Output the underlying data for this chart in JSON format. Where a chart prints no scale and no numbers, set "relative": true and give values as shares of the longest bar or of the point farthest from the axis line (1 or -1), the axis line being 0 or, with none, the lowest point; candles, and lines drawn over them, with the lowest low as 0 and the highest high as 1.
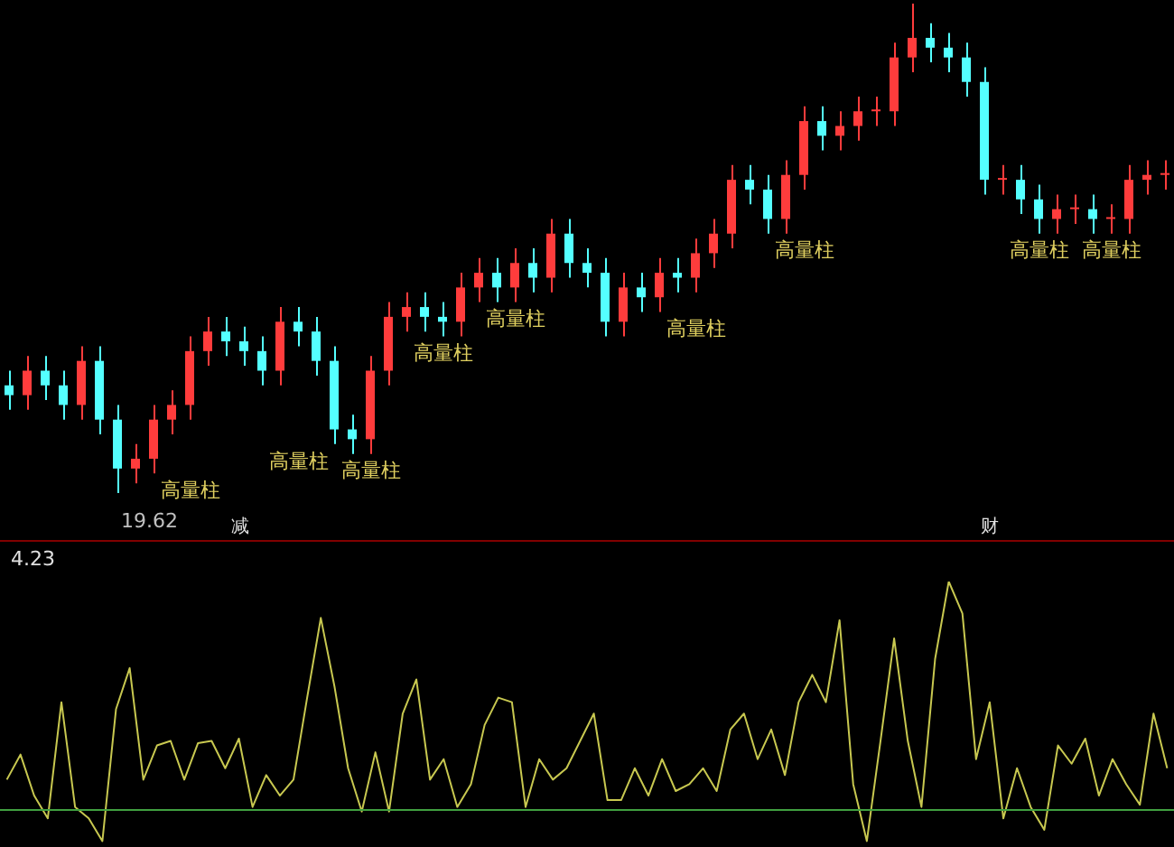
{
  "chart_data": [
    {
      "type": "candlestick",
      "relative": true,
      "categories": [
        null,
        null,
        null,
        null,
        null,
        null,
        null,
        null,
        null,
        null,
        null,
        null,
        null,
        null,
        null,
        null,
        null,
        null,
        null,
        null,
        null,
        null,
        null,
        null,
        null,
        null,
        null,
        null,
        null,
        null,
        null,
        null,
        null,
        null,
        null,
        null,
        null,
        null,
        null,
        null,
        null,
        null,
        null,
        null,
        null,
        null,
        null,
        null,
        null,
        null,
        null,
        null,
        null,
        null,
        null,
        null,
        null,
        null,
        null,
        null,
        null,
        null,
        null,
        null,
        null
      ],
      "ohlc": [
        [
          0.22,
          0.25,
          0.17,
          0.2
        ],
        [
          0.2,
          0.28,
          0.17,
          0.25
        ],
        [
          0.25,
          0.28,
          0.19,
          0.22
        ],
        [
          0.22,
          0.25,
          0.15,
          0.18
        ],
        [
          0.18,
          0.3,
          0.15,
          0.27
        ],
        [
          0.27,
          0.3,
          0.12,
          0.15
        ],
        [
          0.15,
          0.18,
          0,
          0.05
        ],
        [
          0.05,
          0.1,
          0.02,
          0.07
        ],
        [
          0.07,
          0.18,
          0.04,
          0.15
        ],
        [
          0.15,
          0.21,
          0.12,
          0.18
        ],
        [
          0.18,
          0.32,
          0.15,
          0.29
        ],
        [
          0.29,
          0.36,
          0.26,
          0.33
        ],
        [
          0.33,
          0.36,
          0.28,
          0.31
        ],
        [
          0.31,
          0.34,
          0.26,
          0.29
        ],
        [
          0.29,
          0.32,
          0.22,
          0.25
        ],
        [
          0.25,
          0.38,
          0.22,
          0.35
        ],
        [
          0.35,
          0.38,
          0.3,
          0.33
        ],
        [
          0.33,
          0.36,
          0.24,
          0.27
        ],
        [
          0.27,
          0.3,
          0.1,
          0.13
        ],
        [
          0.13,
          0.16,
          0.08,
          0.11
        ],
        [
          0.11,
          0.28,
          0.08,
          0.25
        ],
        [
          0.25,
          0.39,
          0.22,
          0.36
        ],
        [
          0.36,
          0.41,
          0.33,
          0.38
        ],
        [
          0.38,
          0.41,
          0.33,
          0.36
        ],
        [
          0.36,
          0.39,
          0.32,
          0.35
        ],
        [
          0.35,
          0.45,
          0.32,
          0.42
        ],
        [
          0.42,
          0.48,
          0.39,
          0.45
        ],
        [
          0.45,
          0.48,
          0.39,
          0.42
        ],
        [
          0.42,
          0.5,
          0.39,
          0.47
        ],
        [
          0.47,
          0.5,
          0.41,
          0.44
        ],
        [
          0.44,
          0.56,
          0.41,
          0.53
        ],
        [
          0.53,
          0.56,
          0.44,
          0.47
        ],
        [
          0.47,
          0.5,
          0.42,
          0.45
        ],
        [
          0.45,
          0.48,
          0.32,
          0.35
        ],
        [
          0.35,
          0.45,
          0.32,
          0.42
        ],
        [
          0.42,
          0.45,
          0.37,
          0.4
        ],
        [
          0.4,
          0.48,
          0.37,
          0.45
        ],
        [
          0.45,
          0.48,
          0.41,
          0.44
        ],
        [
          0.44,
          0.52,
          0.41,
          0.49
        ],
        [
          0.49,
          0.56,
          0.46,
          0.53
        ],
        [
          0.53,
          0.67,
          0.5,
          0.64
        ],
        [
          0.64,
          0.67,
          0.59,
          0.62
        ],
        [
          0.62,
          0.65,
          0.53,
          0.56
        ],
        [
          0.56,
          0.68,
          0.53,
          0.65
        ],
        [
          0.65,
          0.79,
          0.62,
          0.76
        ],
        [
          0.76,
          0.79,
          0.7,
          0.73
        ],
        [
          0.73,
          0.78,
          0.7,
          0.75
        ],
        [
          0.75,
          0.81,
          0.72,
          0.78
        ],
        [
          0.78,
          0.81,
          0.75,
          0.78
        ],
        [
          0.78,
          0.92,
          0.75,
          0.89
        ],
        [
          0.89,
          1,
          0.86,
          0.93
        ],
        [
          0.93,
          0.96,
          0.88,
          0.91
        ],
        [
          0.91,
          0.94,
          0.86,
          0.89
        ],
        [
          0.89,
          0.92,
          0.81,
          0.84
        ],
        [
          0.84,
          0.87,
          0.61,
          0.64
        ],
        [
          0.64,
          0.67,
          0.61,
          0.64
        ],
        [
          0.64,
          0.67,
          0.57,
          0.6
        ],
        [
          0.6,
          0.63,
          0.53,
          0.56
        ],
        [
          0.56,
          0.61,
          0.53,
          0.58
        ],
        [
          0.58,
          0.61,
          0.55,
          0.58
        ],
        [
          0.58,
          0.61,
          0.53,
          0.56
        ],
        [
          0.56,
          0.59,
          0.53,
          0.56
        ],
        [
          0.56,
          0.67,
          0.53,
          0.64
        ],
        [
          0.64,
          0.68,
          0.61,
          0.65
        ],
        [
          0.65,
          0.68,
          0.62,
          0.65
        ]
      ],
      "annotations": [
        "19.62",
        "高量柱",
        "高量柱",
        "高量柱",
        "高量柱",
        "高量柱",
        "高量柱",
        "高量柱",
        "高量柱",
        "高量柱",
        "减",
        "财"
      ]
    },
    {
      "type": "line",
      "relative": true,
      "categories": [
        null,
        null,
        null,
        null,
        null,
        null,
        null,
        null,
        null,
        null,
        null,
        null,
        null,
        null,
        null,
        null,
        null,
        null,
        null,
        null,
        null,
        null,
        null,
        null,
        null,
        null,
        null,
        null,
        null,
        null,
        null,
        null,
        null,
        null,
        null,
        null,
        null,
        null,
        null,
        null,
        null,
        null,
        null,
        null,
        null,
        null,
        null,
        null,
        null,
        null,
        null,
        null,
        null,
        null,
        null,
        null,
        null,
        null,
        null,
        null,
        null,
        null,
        null,
        null,
        null,
        null,
        null,
        null,
        null,
        null,
        null,
        null,
        null,
        null,
        null,
        null,
        null,
        null,
        null,
        null,
        null,
        null,
        null,
        null,
        null,
        null
      ],
      "series": [
        {
          "color": "#c8c850",
          "values": [
            0.13,
            0.24,
            0.06,
            -0.04,
            0.47,
            0.01,
            -0.04,
            -0.14,
            0.44,
            0.62,
            0.13,
            0.28,
            0.3,
            0.13,
            0.29,
            0.3,
            0.18,
            0.31,
            0.01,
            0.15,
            0.06,
            0.13,
            0.49,
            0.84,
            0.54,
            0.18,
            -0.01,
            0.25,
            -0.01,
            0.42,
            0.57,
            0.13,
            0.22,
            0.01,
            0.11,
            0.37,
            0.49,
            0.47,
            0.01,
            0.22,
            0.13,
            0.18,
            0.3,
            0.42,
            0.04,
            0.04,
            0.18,
            0.06,
            0.22,
            0.08,
            0.11,
            0.18,
            0.08,
            0.35,
            0.42,
            0.22,
            0.35,
            0.15,
            0.47,
            0.59,
            0.47,
            0.83,
            0.11,
            -0.14,
            0.3,
            0.75,
            0.3,
            0.01,
            0.66,
            1,
            0.86,
            0.22,
            0.47,
            -0.04,
            0.18,
            0.01,
            -0.09,
            0.28,
            0.2,
            0.31,
            0.06,
            0.22,
            0.11,
            0.02,
            0.42,
            0.18
          ]
        }
      ],
      "ref_lines": [
        {
          "axis": "y",
          "value": 0,
          "color": "#40a040"
        }
      ],
      "annotations": [
        "4.23"
      ]
    }
  ]
}
